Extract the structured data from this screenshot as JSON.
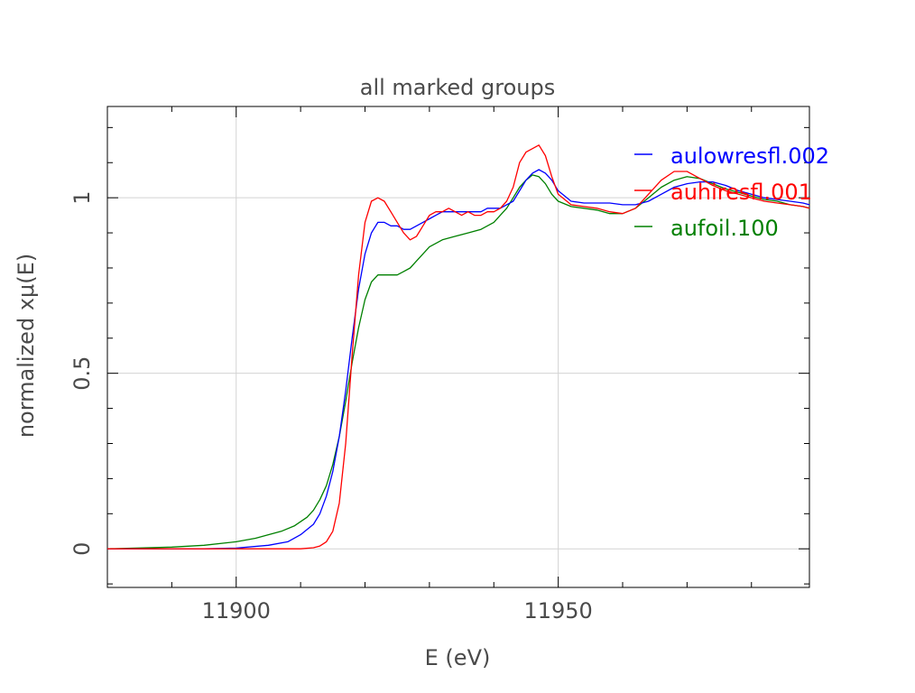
{
  "chart_data": {
    "type": "line",
    "title": "all marked groups",
    "xlabel": "E (eV)",
    "ylabel": "normalized xμ(E)",
    "xlim": [
      11880,
      11989
    ],
    "ylim": [
      -0.11,
      1.26
    ],
    "xticks": [
      11900,
      11950
    ],
    "xtick_labels": [
      "11900",
      "11950"
    ],
    "yticks": [
      0,
      0.5,
      1
    ],
    "ytick_labels": [
      "0",
      "0.5",
      "1"
    ],
    "grid": true,
    "legend_position": "top-right",
    "series": [
      {
        "name": "aulowresfl.002",
        "color": "#0000ff",
        "x": [
          11880,
          11895,
          11900,
          11905,
          11908,
          11910,
          11912,
          11913,
          11914,
          11915,
          11916,
          11917,
          11918,
          11919,
          11920,
          11921,
          11922,
          11923,
          11924,
          11925,
          11926,
          11927,
          11928,
          11929,
          11930,
          11931,
          11932,
          11933,
          11934,
          11935,
          11936,
          11937,
          11938,
          11939,
          11940,
          11941,
          11942,
          11943,
          11944,
          11945,
          11946,
          11947,
          11948,
          11949,
          11950,
          11952,
          11954,
          11956,
          11958,
          11960,
          11962,
          11964,
          11966,
          11968,
          11970,
          11972,
          11974,
          11976,
          11978,
          11980,
          11982,
          11984,
          11986,
          11988,
          11989
        ],
        "y": [
          0.0,
          0.0,
          0.002,
          0.01,
          0.02,
          0.04,
          0.07,
          0.1,
          0.15,
          0.22,
          0.32,
          0.45,
          0.6,
          0.74,
          0.84,
          0.9,
          0.93,
          0.93,
          0.92,
          0.92,
          0.91,
          0.91,
          0.92,
          0.93,
          0.94,
          0.95,
          0.96,
          0.96,
          0.96,
          0.96,
          0.96,
          0.96,
          0.96,
          0.97,
          0.97,
          0.97,
          0.98,
          0.99,
          1.02,
          1.05,
          1.07,
          1.08,
          1.07,
          1.05,
          1.02,
          0.99,
          0.985,
          0.985,
          0.985,
          0.98,
          0.98,
          0.99,
          1.01,
          1.03,
          1.04,
          1.045,
          1.045,
          1.035,
          1.02,
          1.01,
          1.0,
          0.995,
          0.99,
          0.985,
          0.98
        ]
      },
      {
        "name": "auhiresfl.001",
        "color": "#ff0000",
        "x": [
          11880,
          11900,
          11910,
          11912,
          11913,
          11914,
          11915,
          11916,
          11917,
          11918,
          11919,
          11920,
          11921,
          11922,
          11923,
          11924,
          11925,
          11926,
          11927,
          11928,
          11929,
          11930,
          11931,
          11932,
          11933,
          11934,
          11935,
          11936,
          11937,
          11938,
          11939,
          11940,
          11941,
          11942,
          11943,
          11944,
          11945,
          11946,
          11947,
          11948,
          11949,
          11950,
          11952,
          11954,
          11956,
          11958,
          11960,
          11962,
          11964,
          11966,
          11968,
          11970,
          11972,
          11974,
          11976,
          11978,
          11980,
          11982,
          11984,
          11986,
          11988,
          11989
        ],
        "y": [
          0.0,
          0.0,
          0.0,
          0.003,
          0.008,
          0.02,
          0.05,
          0.13,
          0.3,
          0.55,
          0.78,
          0.93,
          0.99,
          1.0,
          0.99,
          0.96,
          0.93,
          0.9,
          0.88,
          0.89,
          0.92,
          0.95,
          0.96,
          0.96,
          0.97,
          0.96,
          0.95,
          0.96,
          0.95,
          0.95,
          0.96,
          0.96,
          0.97,
          0.99,
          1.03,
          1.1,
          1.13,
          1.14,
          1.15,
          1.12,
          1.06,
          1.01,
          0.98,
          0.975,
          0.97,
          0.96,
          0.955,
          0.97,
          1.01,
          1.05,
          1.075,
          1.075,
          1.055,
          1.035,
          1.02,
          1.01,
          1.0,
          0.99,
          0.985,
          0.98,
          0.975,
          0.97
        ]
      },
      {
        "name": "aufoil.100",
        "color": "#008000",
        "x": [
          11880,
          11890,
          11895,
          11900,
          11903,
          11905,
          11907,
          11909,
          11911,
          11912,
          11913,
          11914,
          11915,
          11916,
          11917,
          11918,
          11919,
          11920,
          11921,
          11922,
          11923,
          11924,
          11925,
          11926,
          11927,
          11928,
          11929,
          11930,
          11932,
          11934,
          11936,
          11938,
          11940,
          11941,
          11942,
          11943,
          11944,
          11945,
          11946,
          11947,
          11948,
          11949,
          11950,
          11952,
          11954,
          11956,
          11958,
          11960,
          11962,
          11964,
          11966,
          11968,
          11970,
          11972,
          11974,
          11976,
          11978,
          11980,
          11982,
          11984,
          11986,
          11988,
          11989
        ],
        "y": [
          0.0,
          0.005,
          0.01,
          0.02,
          0.03,
          0.04,
          0.05,
          0.065,
          0.09,
          0.11,
          0.14,
          0.18,
          0.24,
          0.32,
          0.42,
          0.53,
          0.63,
          0.71,
          0.76,
          0.78,
          0.78,
          0.78,
          0.78,
          0.79,
          0.8,
          0.82,
          0.84,
          0.86,
          0.88,
          0.89,
          0.9,
          0.91,
          0.93,
          0.95,
          0.97,
          1.0,
          1.03,
          1.05,
          1.065,
          1.06,
          1.04,
          1.01,
          0.99,
          0.975,
          0.97,
          0.965,
          0.955,
          0.955,
          0.97,
          1.0,
          1.03,
          1.05,
          1.06,
          1.055,
          1.04,
          1.025,
          1.015,
          1.005,
          0.995,
          0.99,
          0.98,
          0.975,
          0.97
        ]
      }
    ]
  }
}
